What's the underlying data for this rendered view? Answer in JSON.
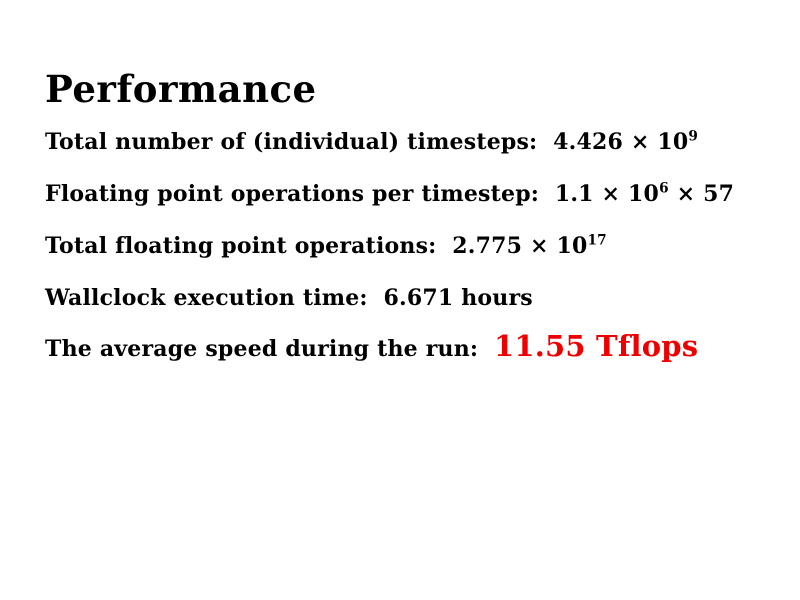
{
  "slide": {
    "title": "Performance",
    "colors": {
      "background": "#ffffff",
      "text": "#000000",
      "highlight": "#ee0000"
    },
    "lines": [
      {
        "pre": "Total number of (individual) timesteps:  4.426 × 10",
        "sup": "9",
        "post": ""
      },
      {
        "pre": "Floating point operations per timestep:  1.1 × 10",
        "sup": "6",
        "post": " × 57"
      },
      {
        "pre": "Total floating point operations:  2.775 × 10",
        "sup": "17",
        "post": ""
      },
      {
        "pre": "Wallclock execution time:  6.671 hours",
        "sup": "",
        "post": ""
      },
      {
        "pre": "The average speed during the run:  ",
        "sup": "",
        "post": "",
        "highlight": "11.55 Tflops"
      }
    ]
  }
}
